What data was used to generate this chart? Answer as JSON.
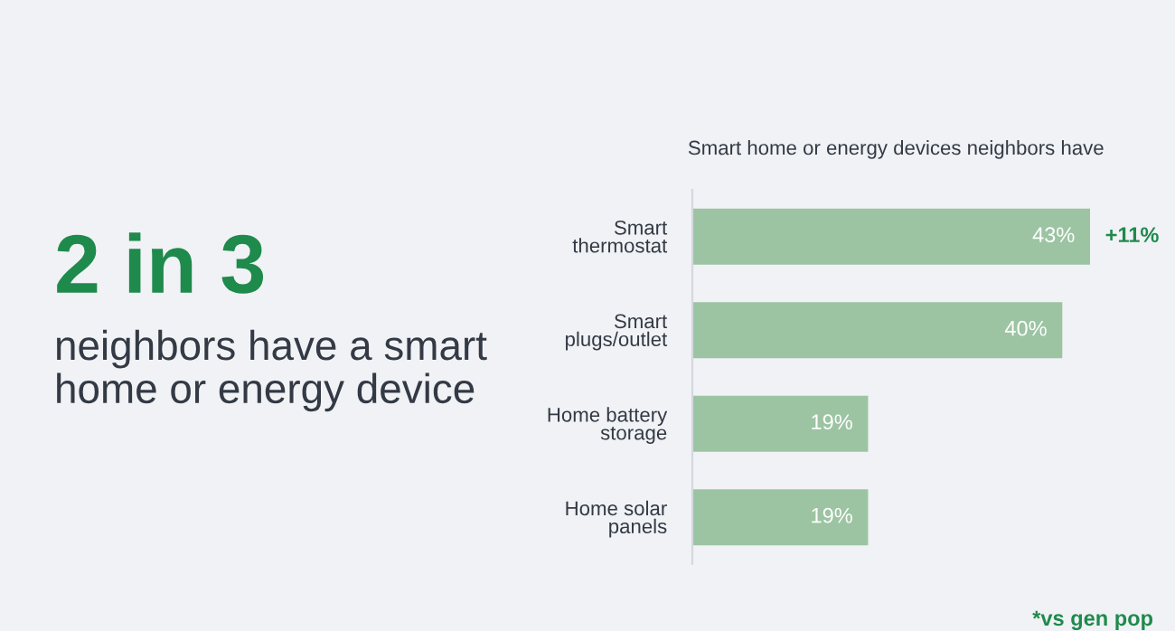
{
  "chart_data": {
    "type": "bar",
    "orientation": "horizontal",
    "title": "Smart home or energy devices neighbors have",
    "categories": [
      "Smart\nthermostat",
      "Smart\nplugs/outlet",
      "Home battery\nstorage",
      "Home solar\npanels"
    ],
    "values": [
      43,
      40,
      19,
      19
    ],
    "value_labels": [
      "43%",
      "40%",
      "19%",
      "19%"
    ],
    "color": "#9cc4a3",
    "grid": false,
    "annotations": [
      {
        "text": "+11%",
        "x": 43,
        "y": "Smart\nthermostat"
      },
      "2 in 3",
      "neighbors have a smart\nhome or energy device",
      "*vs gen pop"
    ]
  }
}
